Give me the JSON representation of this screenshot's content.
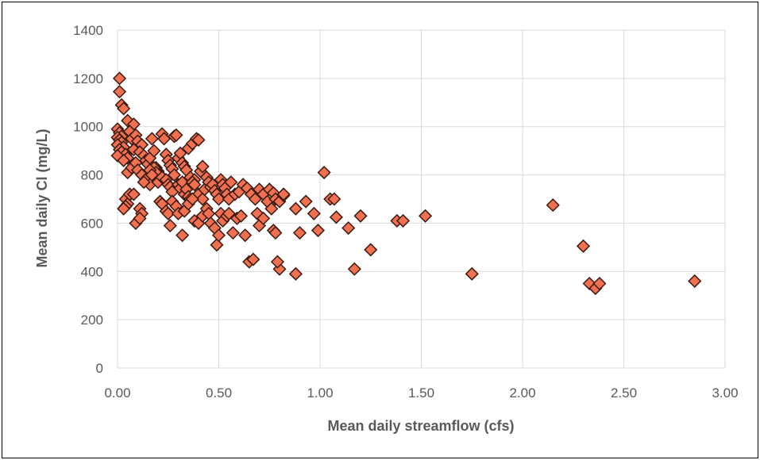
{
  "chart_data": {
    "type": "scatter",
    "title": "",
    "xlabel": "Mean daily streamflow (cfs)",
    "ylabel": "Mean daily Cl (mg/L)",
    "xlim": [
      0,
      3
    ],
    "ylim": [
      0,
      1400
    ],
    "x_ticks": [
      "0.00",
      "0.50",
      "1.00",
      "1.50",
      "2.00",
      "2.50",
      "3.00"
    ],
    "y_ticks": [
      "0",
      "200",
      "400",
      "600",
      "800",
      "1000",
      "1200",
      "1400"
    ],
    "grid": true,
    "legend": "none",
    "marker": "diamond",
    "colors": {
      "marker_fill": "#f0704f",
      "marker_edge": "#3a1a12",
      "grid": "#d9d9d9",
      "text": "#595959"
    },
    "series": [
      {
        "points": [
          [
            0.01,
            1200
          ],
          [
            0.01,
            1145
          ],
          [
            0.02,
            1090
          ],
          [
            0.03,
            1075
          ],
          [
            0.05,
            1025
          ],
          [
            0.08,
            1010
          ],
          [
            0.0,
            990
          ],
          [
            0.01,
            975
          ],
          [
            0.02,
            960
          ],
          [
            0.0,
            955
          ],
          [
            0.01,
            945
          ],
          [
            0.02,
            935
          ],
          [
            0.0,
            925
          ],
          [
            0.03,
            915
          ],
          [
            0.01,
            905
          ],
          [
            0.02,
            895
          ],
          [
            0.04,
            885
          ],
          [
            0.0,
            880
          ],
          [
            0.05,
            870
          ],
          [
            0.03,
            860
          ],
          [
            0.06,
            980
          ],
          [
            0.07,
            950
          ],
          [
            0.09,
            965
          ],
          [
            0.1,
            940
          ],
          [
            0.12,
            925
          ],
          [
            0.08,
            905
          ],
          [
            0.11,
            895
          ],
          [
            0.13,
            880
          ],
          [
            0.14,
            860
          ],
          [
            0.15,
            845
          ],
          [
            0.16,
            870
          ],
          [
            0.17,
            950
          ],
          [
            0.18,
            900
          ],
          [
            0.19,
            830
          ],
          [
            0.2,
            815
          ],
          [
            0.21,
            800
          ],
          [
            0.22,
            970
          ],
          [
            0.23,
            950
          ],
          [
            0.24,
            885
          ],
          [
            0.25,
            860
          ],
          [
            0.26,
            840
          ],
          [
            0.27,
            825
          ],
          [
            0.28,
            960
          ],
          [
            0.29,
            965
          ],
          [
            0.3,
            870
          ],
          [
            0.31,
            890
          ],
          [
            0.32,
            850
          ],
          [
            0.33,
            835
          ],
          [
            0.34,
            820
          ],
          [
            0.35,
            910
          ],
          [
            0.36,
            790
          ],
          [
            0.37,
            930
          ],
          [
            0.38,
            780
          ],
          [
            0.39,
            950
          ],
          [
            0.4,
            945
          ],
          [
            0.41,
            815
          ],
          [
            0.42,
            835
          ],
          [
            0.05,
            810
          ],
          [
            0.07,
            830
          ],
          [
            0.09,
            850
          ],
          [
            0.1,
            820
          ],
          [
            0.12,
            800
          ],
          [
            0.14,
            780
          ],
          [
            0.15,
            790
          ],
          [
            0.16,
            760
          ],
          [
            0.18,
            830
          ],
          [
            0.19,
            810
          ],
          [
            0.2,
            770
          ],
          [
            0.22,
            790
          ],
          [
            0.24,
            780
          ],
          [
            0.25,
            760
          ],
          [
            0.26,
            750
          ],
          [
            0.27,
            730
          ],
          [
            0.28,
            800
          ],
          [
            0.3,
            760
          ],
          [
            0.31,
            745
          ],
          [
            0.32,
            770
          ],
          [
            0.33,
            720
          ],
          [
            0.34,
            740
          ],
          [
            0.35,
            710
          ],
          [
            0.36,
            700
          ],
          [
            0.37,
            770
          ],
          [
            0.38,
            760
          ],
          [
            0.4,
            720
          ],
          [
            0.42,
            700
          ],
          [
            0.43,
            740
          ],
          [
            0.44,
            790
          ],
          [
            0.45,
            770
          ],
          [
            0.46,
            750
          ],
          [
            0.47,
            760
          ],
          [
            0.48,
            735
          ],
          [
            0.49,
            720
          ],
          [
            0.5,
            700
          ],
          [
            0.51,
            780
          ],
          [
            0.52,
            760
          ],
          [
            0.53,
            745
          ],
          [
            0.54,
            720
          ],
          [
            0.55,
            700
          ],
          [
            0.56,
            770
          ],
          [
            0.58,
            720
          ],
          [
            0.6,
            730
          ],
          [
            0.62,
            760
          ],
          [
            0.64,
            745
          ],
          [
            0.66,
            720
          ],
          [
            0.68,
            700
          ],
          [
            0.7,
            740
          ],
          [
            0.72,
            720
          ],
          [
            0.74,
            690
          ],
          [
            0.75,
            740
          ],
          [
            0.77,
            725
          ],
          [
            0.78,
            700
          ],
          [
            0.8,
            690
          ],
          [
            0.82,
            715
          ],
          [
            0.04,
            700
          ],
          [
            0.05,
            680
          ],
          [
            0.04,
            670
          ],
          [
            0.03,
            660
          ],
          [
            0.06,
            720
          ],
          [
            0.08,
            720
          ],
          [
            0.11,
            660
          ],
          [
            0.12,
            640
          ],
          [
            0.09,
            600
          ],
          [
            0.11,
            620
          ],
          [
            0.21,
            690
          ],
          [
            0.22,
            680
          ],
          [
            0.24,
            650
          ],
          [
            0.25,
            640
          ],
          [
            0.26,
            590
          ],
          [
            0.27,
            690
          ],
          [
            0.29,
            670
          ],
          [
            0.3,
            640
          ],
          [
            0.32,
            550
          ],
          [
            0.33,
            650
          ],
          [
            0.35,
            680
          ],
          [
            0.37,
            700
          ],
          [
            0.38,
            610
          ],
          [
            0.4,
            600
          ],
          [
            0.42,
            630
          ],
          [
            0.44,
            660
          ],
          [
            0.45,
            640
          ],
          [
            0.46,
            600
          ],
          [
            0.48,
            580
          ],
          [
            0.49,
            510
          ],
          [
            0.5,
            550
          ],
          [
            0.51,
            640
          ],
          [
            0.52,
            610
          ],
          [
            0.54,
            630
          ],
          [
            0.55,
            640
          ],
          [
            0.57,
            560
          ],
          [
            0.59,
            620
          ],
          [
            0.61,
            630
          ],
          [
            0.63,
            550
          ],
          [
            0.65,
            440
          ],
          [
            0.67,
            450
          ],
          [
            0.69,
            640
          ],
          [
            0.7,
            590
          ],
          [
            0.72,
            620
          ],
          [
            0.76,
            660
          ],
          [
            0.77,
            570
          ],
          [
            0.78,
            560
          ],
          [
            0.8,
            410
          ],
          [
            0.82,
            720
          ],
          [
            0.88,
            660
          ],
          [
            0.9,
            560
          ],
          [
            0.93,
            690
          ],
          [
            0.97,
            640
          ],
          [
            0.99,
            570
          ],
          [
            1.02,
            810
          ],
          [
            1.05,
            700
          ],
          [
            1.07,
            700
          ],
          [
            1.08,
            625
          ],
          [
            1.14,
            580
          ],
          [
            1.17,
            410
          ],
          [
            1.2,
            630
          ],
          [
            1.25,
            490
          ],
          [
            1.38,
            610
          ],
          [
            1.41,
            610
          ],
          [
            1.52,
            630
          ],
          [
            1.75,
            390
          ],
          [
            2.15,
            675
          ],
          [
            2.3,
            505
          ],
          [
            2.33,
            350
          ],
          [
            2.36,
            330
          ],
          [
            2.38,
            350
          ],
          [
            2.85,
            360
          ],
          [
            0.88,
            390
          ],
          [
            0.79,
            440
          ],
          [
            0.16,
            820
          ],
          [
            0.13,
            770
          ],
          [
            0.17,
            800
          ]
        ]
      }
    ]
  }
}
